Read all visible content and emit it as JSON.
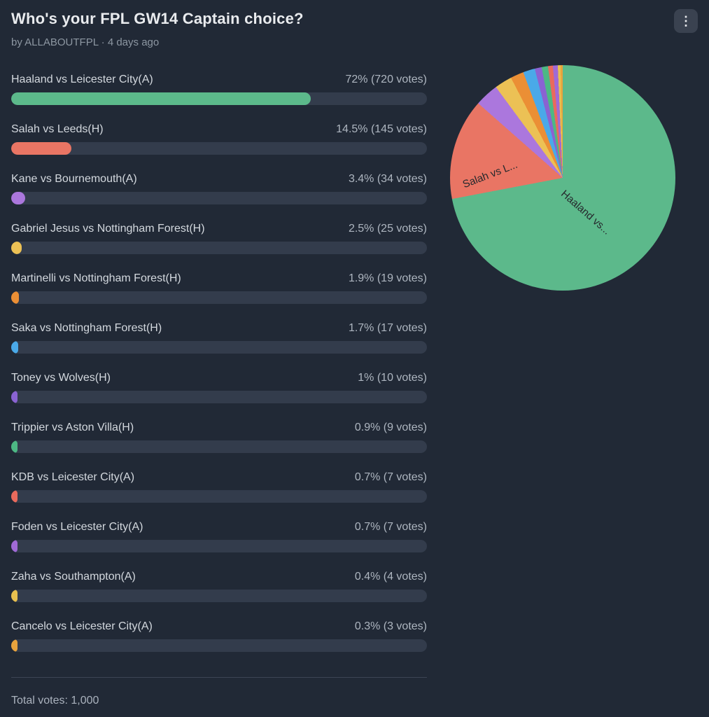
{
  "poll": {
    "title": "Who's your FPL GW14 Captain choice?",
    "byline": "by ALLABOUTFPL · 4 days ago",
    "menu_icon_glyph": "⋮",
    "total_label": "Total votes: 1,000",
    "options": [
      {
        "label": "Haaland vs Leicester City(A)",
        "result": "72% (720 votes)",
        "percent": 72,
        "color": "#5cb98b"
      },
      {
        "label": "Salah vs Leeds(H)",
        "result": "14.5% (145 votes)",
        "percent": 14.5,
        "color": "#e97564"
      },
      {
        "label": "Kane vs Bournemouth(A)",
        "result": "3.4% (34 votes)",
        "percent": 3.4,
        "color": "#ab77dd"
      },
      {
        "label": "Gabriel Jesus vs Nottingham Forest(H)",
        "result": "2.5% (25 votes)",
        "percent": 2.5,
        "color": "#ecc155"
      },
      {
        "label": "Martinelli vs Nottingham Forest(H)",
        "result": "1.9% (19 votes)",
        "percent": 1.9,
        "color": "#eb8f35"
      },
      {
        "label": "Saka vs Nottingham Forest(H)",
        "result": "1.7% (17 votes)",
        "percent": 1.7,
        "color": "#4aa9e8"
      },
      {
        "label": "Toney vs Wolves(H)",
        "result": "1% (10 votes)",
        "percent": 1,
        "color": "#8a63d2"
      },
      {
        "label": "Trippier vs Aston Villa(H)",
        "result": "0.9% (9 votes)",
        "percent": 0.9,
        "color": "#4db884"
      },
      {
        "label": "KDB vs Leicester City(A)",
        "result": "0.7% (7 votes)",
        "percent": 0.7,
        "color": "#e96a5c"
      },
      {
        "label": "Foden vs Leicester City(A)",
        "result": "0.7% (7 votes)",
        "percent": 0.7,
        "color": "#a06ad6"
      },
      {
        "label": "Zaha vs Southampton(A)",
        "result": "0.4% (4 votes)",
        "percent": 0.4,
        "color": "#e8c04f"
      },
      {
        "label": "Cancelo vs Leicester City(A)",
        "result": "0.3% (3 votes)",
        "percent": 0.3,
        "color": "#e8a33d"
      }
    ]
  },
  "chart_data": {
    "type": "pie",
    "title": "Who's your FPL GW14 Captain choice?",
    "labels": [
      "Haaland vs Leicester City(A)",
      "Salah vs Leeds(H)",
      "Kane vs Bournemouth(A)",
      "Gabriel Jesus vs Nottingham Forest(H)",
      "Martinelli vs Nottingham Forest(H)",
      "Saka vs Nottingham Forest(H)",
      "Toney vs Wolves(H)",
      "Trippier vs Aston Villa(H)",
      "KDB vs Leicester City(A)",
      "Foden vs Leicester City(A)",
      "Zaha vs Southampton(A)",
      "Cancelo vs Leicester City(A)"
    ],
    "values": [
      72,
      14.5,
      3.4,
      2.5,
      1.9,
      1.7,
      1,
      0.9,
      0.7,
      0.7,
      0.4,
      0.3
    ],
    "votes": [
      720,
      145,
      34,
      25,
      19,
      17,
      10,
      9,
      7,
      7,
      4,
      3
    ],
    "total_votes": 1000,
    "colors": [
      "#5cb98b",
      "#e97564",
      "#ab77dd",
      "#ecc155",
      "#eb8f35",
      "#4aa9e8",
      "#8a63d2",
      "#4db884",
      "#e96a5c",
      "#a06ad6",
      "#e8c04f",
      "#e8a33d"
    ],
    "legend": "none",
    "slice_labels": [
      {
        "text": "Haaland vs..."
      },
      {
        "text": "Salah vs L..."
      }
    ]
  }
}
